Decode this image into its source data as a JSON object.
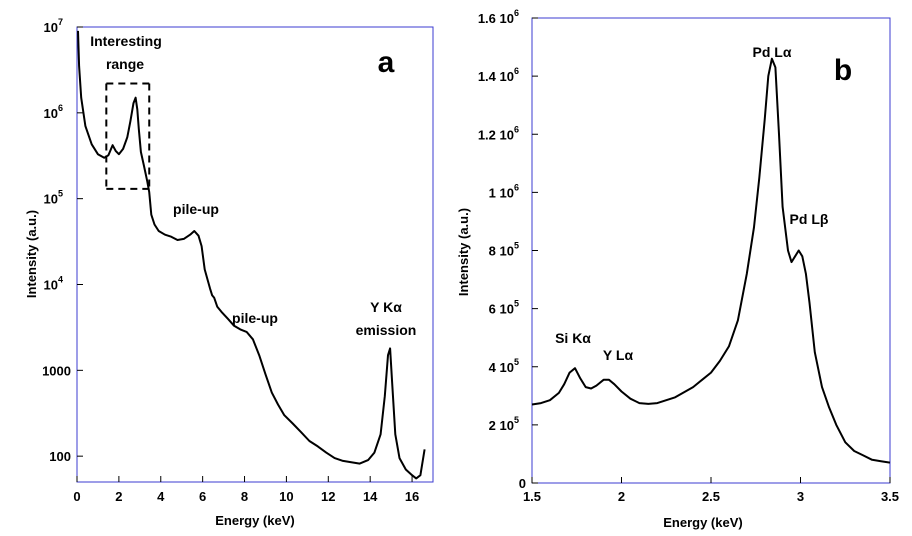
{
  "chart_data": [
    {
      "type": "line",
      "panel_label": "a",
      "xlabel": "Energy (keV)",
      "ylabel": "Intensity (a.u.)",
      "xlim": [
        0,
        17
      ],
      "ylim": [
        50,
        10000000
      ],
      "yscale": "log",
      "grid": false,
      "x_ticks": [
        0,
        2,
        4,
        6,
        8,
        10,
        12,
        14,
        16
      ],
      "y_ticks": [
        {
          "value": 100,
          "base": "100",
          "exp": ""
        },
        {
          "value": 1000,
          "base": "1000",
          "exp": ""
        },
        {
          "value": 10000,
          "base": "10",
          "exp": "4"
        },
        {
          "value": 100000,
          "base": "10",
          "exp": "5"
        },
        {
          "value": 1000000,
          "base": "10",
          "exp": "6"
        },
        {
          "value": 10000000,
          "base": "10",
          "exp": "7"
        }
      ],
      "series": [
        {
          "x": [
            0.05,
            0.1,
            0.2,
            0.4,
            0.7,
            1.0,
            1.3,
            1.5,
            1.7,
            1.85,
            2.0,
            2.2,
            2.4,
            2.55,
            2.7,
            2.8,
            2.88,
            2.95,
            3.05,
            3.2,
            3.35,
            3.45,
            3.55,
            3.7,
            3.9,
            4.2,
            4.5,
            4.8,
            5.1,
            5.4,
            5.6,
            5.8,
            5.95,
            6.1,
            6.25,
            6.35,
            6.45,
            6.55,
            6.7,
            6.9,
            7.2,
            7.5,
            7.8,
            8.1,
            8.4,
            8.7,
            9.0,
            9.3,
            9.6,
            9.9,
            10.3,
            10.7,
            11.1,
            11.5,
            11.9,
            12.3,
            12.7,
            13.1,
            13.5,
            13.9,
            14.2,
            14.5,
            14.7,
            14.85,
            14.95,
            15.05,
            15.2,
            15.4,
            15.7,
            16.0,
            16.2,
            16.4,
            16.6
          ],
          "y": [
            9000000,
            3500000,
            1500000,
            700000,
            430000,
            330000,
            300000,
            320000,
            420000,
            360000,
            330000,
            380000,
            520000,
            800000,
            1300000,
            1500000,
            1100000,
            650000,
            350000,
            240000,
            160000,
            120000,
            65000,
            50000,
            42000,
            38000,
            36000,
            33000,
            34000,
            38000,
            42000,
            37000,
            28000,
            15000,
            11000,
            9000,
            7500,
            7000,
            5500,
            4800,
            4000,
            3300,
            3000,
            2800,
            2300,
            1500,
            900,
            550,
            400,
            300,
            240,
            190,
            150,
            130,
            110,
            95,
            88,
            85,
            82,
            90,
            110,
            180,
            500,
            1500,
            1800,
            700,
            180,
            95,
            70,
            60,
            55,
            60,
            120
          ]
        }
      ],
      "annotations": {
        "interesting": [
          "Interesting",
          "range"
        ],
        "pileup1": "pile-up",
        "pileup2": "pile-up",
        "yka": [
          "Y Kα",
          "emission"
        ]
      },
      "interesting_box": {
        "x0": 1.4,
        "x1": 3.45,
        "y0": 130000,
        "y1": 2200000
      }
    },
    {
      "type": "line",
      "panel_label": "b",
      "xlabel": "Energy (keV)",
      "ylabel": "Intensity (a.u.)",
      "xlim": [
        1.5,
        3.5
      ],
      "ylim": [
        0,
        1600000
      ],
      "grid": false,
      "x_ticks": [
        {
          "value": 1.5,
          "label": "1.5"
        },
        {
          "value": 2,
          "label": "2"
        },
        {
          "value": 2.5,
          "label": "2.5"
        },
        {
          "value": 3,
          "label": "3"
        },
        {
          "value": 3.5,
          "label": "3.5"
        }
      ],
      "y_ticks": [
        {
          "value": 0,
          "base": "0",
          "exp": ""
        },
        {
          "value": 200000,
          "base": "2 10",
          "exp": "5"
        },
        {
          "value": 400000,
          "base": "4 10",
          "exp": "5"
        },
        {
          "value": 600000,
          "base": "6 10",
          "exp": "5"
        },
        {
          "value": 800000,
          "base": "8 10",
          "exp": "5"
        },
        {
          "value": 1000000,
          "base": "1 10",
          "exp": "6"
        },
        {
          "value": 1200000,
          "base": "1.2 10",
          "exp": "6"
        },
        {
          "value": 1400000,
          "base": "1.4 10",
          "exp": "6"
        },
        {
          "value": 1600000,
          "base": "1.6 10",
          "exp": "6"
        }
      ],
      "series": [
        {
          "x": [
            1.5,
            1.55,
            1.6,
            1.65,
            1.68,
            1.71,
            1.74,
            1.77,
            1.8,
            1.83,
            1.86,
            1.9,
            1.93,
            1.96,
            2.0,
            2.05,
            2.1,
            2.15,
            2.2,
            2.3,
            2.4,
            2.45,
            2.5,
            2.55,
            2.6,
            2.65,
            2.7,
            2.74,
            2.77,
            2.8,
            2.82,
            2.84,
            2.86,
            2.88,
            2.9,
            2.93,
            2.95,
            2.97,
            2.99,
            3.01,
            3.03,
            3.05,
            3.08,
            3.12,
            3.16,
            3.2,
            3.25,
            3.3,
            3.35,
            3.4,
            3.45,
            3.5
          ],
          "y": [
            270000,
            275000,
            285000,
            310000,
            340000,
            380000,
            395000,
            360000,
            330000,
            325000,
            335000,
            355000,
            355000,
            340000,
            315000,
            290000,
            275000,
            272000,
            275000,
            295000,
            330000,
            355000,
            380000,
            420000,
            470000,
            560000,
            720000,
            880000,
            1050000,
            1250000,
            1400000,
            1460000,
            1430000,
            1200000,
            950000,
            800000,
            760000,
            780000,
            800000,
            780000,
            720000,
            620000,
            450000,
            330000,
            260000,
            200000,
            140000,
            110000,
            95000,
            80000,
            75000,
            70000
          ]
        }
      ],
      "annotations": {
        "pdla": "Pd Lα",
        "pdlb": "Pd Lβ",
        "sika": "Si Kα",
        "yla": "Y Lα"
      }
    }
  ]
}
